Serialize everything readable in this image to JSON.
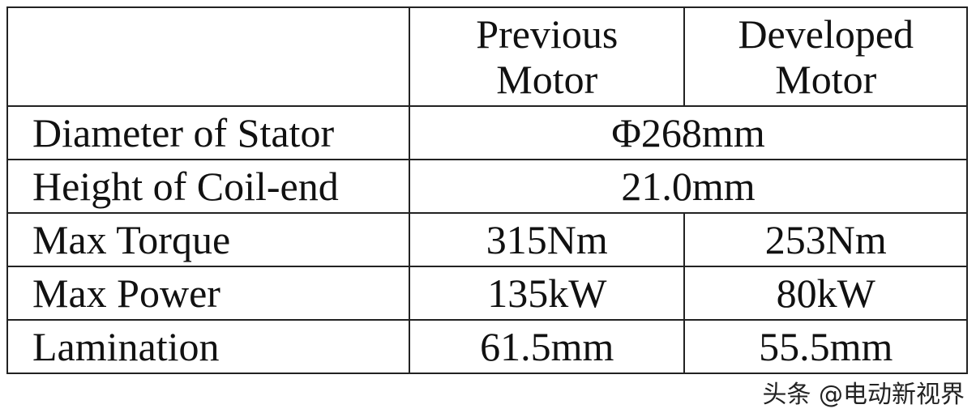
{
  "table": {
    "headers": [
      "",
      "Previous Motor",
      "Developed Motor"
    ],
    "header_lines": {
      "previous": [
        "Previous",
        "Motor"
      ],
      "developed": [
        "Developed",
        "Motor"
      ]
    },
    "rows": [
      {
        "label": "Diameter of Stator",
        "shared": "Φ268mm"
      },
      {
        "label": "Height of Coil-end",
        "shared": "21.0mm"
      },
      {
        "label": "Max Torque",
        "previous": "315Nm",
        "developed": "253Nm"
      },
      {
        "label": "Max Power",
        "previous": "135kW",
        "developed": "80kW"
      },
      {
        "label": "Lamination",
        "previous": "61.5mm",
        "developed": "55.5mm"
      }
    ]
  },
  "watermark": "头条 @电动新视界"
}
